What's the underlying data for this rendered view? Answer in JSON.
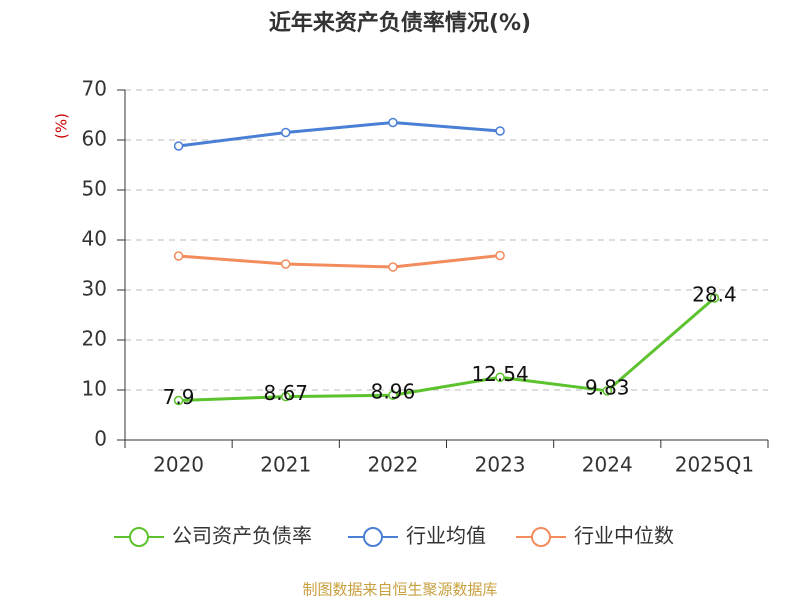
{
  "chart_data": {
    "type": "line",
    "title": "近年来资产负债率情况(%)",
    "y_label": "(%)",
    "source": "制图数据来自恒生聚源数据库",
    "categories": [
      "2020",
      "2021",
      "2022",
      "2023",
      "2024",
      "2025Q1"
    ],
    "series": [
      {
        "name": "公司资产负债率",
        "color": "#5cc22e",
        "values": [
          7.9,
          8.67,
          8.96,
          12.54,
          9.83,
          28.4
        ],
        "data_labels": true
      },
      {
        "name": "行业均值",
        "color": "#4a7fd6",
        "values": [
          58.8,
          61.5,
          63.5,
          61.8,
          null,
          null
        ],
        "data_labels": false
      },
      {
        "name": "行业中位数",
        "color": "#f28c5c",
        "values": [
          36.8,
          35.2,
          34.6,
          36.9,
          null,
          null
        ],
        "data_labels": false
      }
    ],
    "ylim": [
      0,
      70
    ],
    "yticks": [
      0,
      10,
      20,
      30,
      40,
      50,
      60,
      70
    ],
    "grid": true
  }
}
